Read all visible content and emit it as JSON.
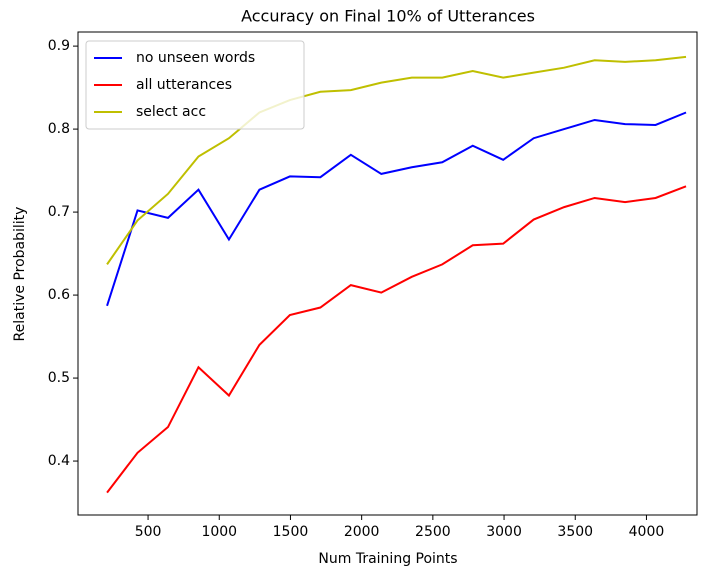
{
  "chart_data": {
    "type": "line",
    "title": "Accuracy on Final 10% of Utterances",
    "xlabel": "Num Training Points",
    "ylabel": "Relative Probability",
    "x": [
      212,
      426,
      640,
      854,
      1068,
      1282,
      1496,
      1710,
      1924,
      2138,
      2352,
      2566,
      2780,
      2994,
      3208,
      3422,
      3636,
      3850,
      4064,
      4278
    ],
    "series": [
      {
        "name": "no unseen words",
        "color": "#0000ff",
        "values": [
          0.587,
          0.702,
          0.693,
          0.727,
          0.667,
          0.727,
          0.743,
          0.742,
          0.769,
          0.746,
          0.754,
          0.76,
          0.78,
          0.763,
          0.789,
          0.8,
          0.811,
          0.806,
          0.805,
          0.82
        ]
      },
      {
        "name": "all utterances",
        "color": "#ff0000",
        "values": [
          0.362,
          0.41,
          0.441,
          0.513,
          0.479,
          0.54,
          0.576,
          0.585,
          0.612,
          0.603,
          0.622,
          0.637,
          0.66,
          0.662,
          0.691,
          0.706,
          0.717,
          0.712,
          0.717,
          0.731
        ]
      },
      {
        "name": "select acc",
        "color": "#bfbf00",
        "values": [
          0.637,
          0.69,
          0.722,
          0.767,
          0.789,
          0.82,
          0.835,
          0.845,
          0.847,
          0.856,
          0.862,
          0.862,
          0.87,
          0.862,
          0.868,
          0.874,
          0.883,
          0.881,
          0.883,
          0.887
        ]
      }
    ],
    "xlim": [
      8,
      4355
    ],
    "xticks": [
      500,
      1000,
      1500,
      2000,
      2500,
      3000,
      3500,
      4000
    ],
    "ylim": [
      0.335,
      0.917
    ],
    "yticks": [
      0.4,
      0.5,
      0.6,
      0.7,
      0.8,
      0.9
    ],
    "legend": "upper left",
    "grid": false
  }
}
